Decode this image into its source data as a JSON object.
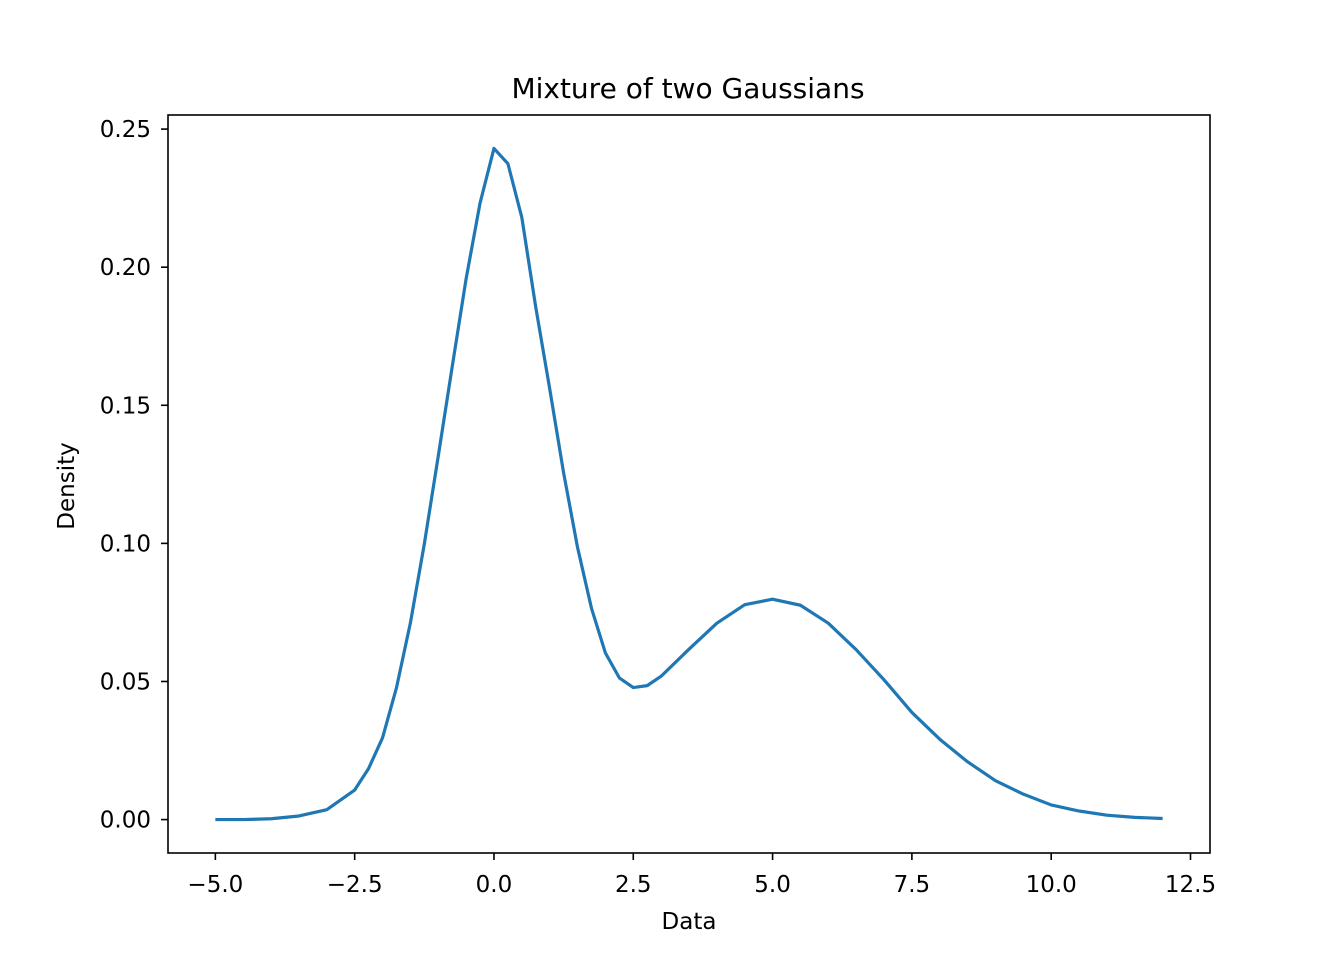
{
  "chart_data": {
    "type": "line",
    "title": "Mixture of two Gaussians",
    "xlabel": "Data",
    "ylabel": "Density",
    "xlim": [
      -5.85,
      12.85
    ],
    "ylim": [
      -0.0121,
      0.2551
    ],
    "xticks": [
      -5.0,
      -2.5,
      0.0,
      2.5,
      5.0,
      7.5,
      10.0,
      12.5
    ],
    "xtick_labels": [
      "−5.0",
      "−2.5",
      "0.0",
      "2.5",
      "5.0",
      "7.5",
      "10.0",
      "12.5"
    ],
    "yticks": [
      0.0,
      0.05,
      0.1,
      0.15,
      0.2,
      0.25
    ],
    "ytick_labels": [
      "0.00",
      "0.05",
      "0.10",
      "0.15",
      "0.20",
      "0.25"
    ],
    "grid": false,
    "line_color": "#1f77b4",
    "series": [
      {
        "x": [
          -5.0,
          -4.5,
          -4.0,
          -3.5,
          -3.0,
          -2.5,
          -2.25,
          -2.0,
          -1.75,
          -1.5,
          -1.25,
          -1.0,
          -0.75,
          -0.5,
          -0.25,
          0.0,
          0.25,
          0.5,
          0.75,
          1.0,
          1.25,
          1.5,
          1.75,
          2.0,
          2.25,
          2.5,
          2.75,
          3.0,
          3.5,
          4.0,
          4.5,
          5.0,
          5.5,
          6.0,
          6.5,
          7.0,
          7.5,
          8.0,
          8.5,
          9.0,
          9.5,
          10.0,
          10.5,
          11.0,
          11.5,
          12.0
        ],
        "y": [
          0.0,
          0.0,
          0.0003,
          0.0013,
          0.0036,
          0.0107,
          0.0185,
          0.0296,
          0.0477,
          0.0712,
          0.0998,
          0.1316,
          0.1639,
          0.1958,
          0.2232,
          0.243,
          0.2375,
          0.218,
          0.1855,
          0.156,
          0.1255,
          0.0985,
          0.0765,
          0.0603,
          0.0513,
          0.0478,
          0.0485,
          0.0519,
          0.0617,
          0.0711,
          0.0778,
          0.0798,
          0.0776,
          0.0711,
          0.0615,
          0.0506,
          0.0388,
          0.0291,
          0.0209,
          0.0141,
          0.0092,
          0.0053,
          0.0031,
          0.0016,
          0.0008,
          0.0004
        ]
      }
    ]
  }
}
